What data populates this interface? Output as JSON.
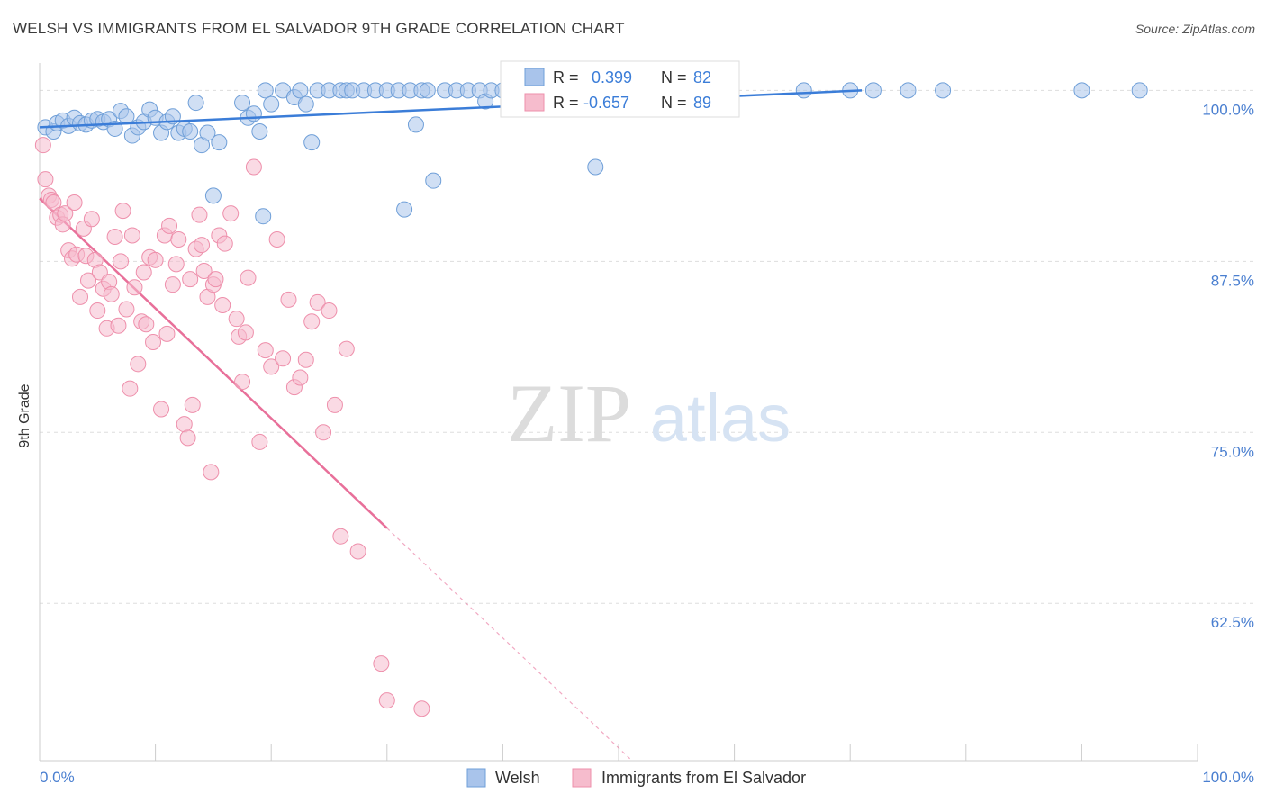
{
  "header": {
    "title": "WELSH VS IMMIGRANTS FROM EL SALVADOR 9TH GRADE CORRELATION CHART",
    "source": "Source: ZipAtlas.com"
  },
  "watermark": {
    "zip": "ZIP",
    "atlas": "atlas"
  },
  "legend_box": {
    "rows": [
      {
        "r_label": "R =",
        "r_value": "0.399",
        "n_label": "N =",
        "n_value": "82"
      },
      {
        "r_label": "R =",
        "r_value": "-0.657",
        "n_label": "N =",
        "n_value": "89"
      }
    ]
  },
  "chart_data": {
    "type": "scatter",
    "title": "WELSH VS IMMIGRANTS FROM EL SALVADOR 9TH GRADE CORRELATION CHART",
    "xlabel": "",
    "ylabel": "9th Grade",
    "xlim": [
      0,
      100
    ],
    "ylim": [
      51,
      102
    ],
    "x_tick_labels": [
      "0.0%",
      "100.0%"
    ],
    "y_ticks": [
      62.5,
      75.0,
      87.5,
      100.0
    ],
    "y_tick_labels": [
      "62.5%",
      "75.0%",
      "87.5%",
      "100.0%"
    ],
    "grid": "horizontal dashed",
    "legend_position": "bottom-center",
    "colors": {
      "welsh_fill": "#a9c4eb",
      "welsh_stroke": "#6f9fd8",
      "welsh_line": "#3b7dd8",
      "salvador_fill": "#f6bccd",
      "salvador_stroke": "#ee8fab",
      "salvador_line": "#e8709a",
      "tick_label": "#4a7fd0",
      "grid": "#dddddd"
    },
    "series": [
      {
        "name": "Welsh",
        "r": 0.399,
        "n": 82,
        "trend": {
          "x": [
            0,
            71
          ],
          "y": [
            97.3,
            100.0
          ]
        },
        "points": [
          [
            0.5,
            97.3
          ],
          [
            1.2,
            97.0
          ],
          [
            1.5,
            97.6
          ],
          [
            2,
            97.8
          ],
          [
            2.5,
            97.4
          ],
          [
            3,
            98.0
          ],
          [
            3.5,
            97.6
          ],
          [
            4,
            97.5
          ],
          [
            4.5,
            97.8
          ],
          [
            5,
            97.9
          ],
          [
            5.5,
            97.7
          ],
          [
            6,
            97.9
          ],
          [
            6.5,
            97.2
          ],
          [
            7,
            98.5
          ],
          [
            7.5,
            98.1
          ],
          [
            8,
            96.7
          ],
          [
            8.5,
            97.3
          ],
          [
            9,
            97.7
          ],
          [
            9.5,
            98.6
          ],
          [
            10,
            98.0
          ],
          [
            10.5,
            96.9
          ],
          [
            11,
            97.7
          ],
          [
            11.5,
            98.1
          ],
          [
            12,
            96.9
          ],
          [
            12.5,
            97.2
          ],
          [
            13,
            97.0
          ],
          [
            13.5,
            99.1
          ],
          [
            14,
            96.0
          ],
          [
            14.5,
            96.9
          ],
          [
            15,
            92.3
          ],
          [
            15.5,
            96.2
          ],
          [
            17.5,
            99.1
          ],
          [
            18,
            98.0
          ],
          [
            18.5,
            98.3
          ],
          [
            19,
            97.0
          ],
          [
            19.3,
            90.8
          ],
          [
            19.5,
            100
          ],
          [
            20,
            99.0
          ],
          [
            21,
            100
          ],
          [
            22,
            99.5
          ],
          [
            22.5,
            100
          ],
          [
            23,
            99.0
          ],
          [
            23.5,
            96.2
          ],
          [
            24,
            100
          ],
          [
            25,
            100
          ],
          [
            26,
            100
          ],
          [
            26.5,
            100
          ],
          [
            27,
            100
          ],
          [
            28,
            100
          ],
          [
            29,
            100
          ],
          [
            30,
            100
          ],
          [
            31,
            100
          ],
          [
            31.5,
            91.3
          ],
          [
            32,
            100
          ],
          [
            32.5,
            97.5
          ],
          [
            33,
            100
          ],
          [
            33.5,
            100
          ],
          [
            34,
            93.4
          ],
          [
            35,
            100
          ],
          [
            36,
            100
          ],
          [
            37,
            100
          ],
          [
            38,
            100
          ],
          [
            38.5,
            99.2
          ],
          [
            39,
            100
          ],
          [
            40,
            100
          ],
          [
            41,
            100
          ],
          [
            42,
            100
          ],
          [
            43,
            100
          ],
          [
            44,
            100
          ],
          [
            45,
            100
          ],
          [
            46,
            100
          ],
          [
            47,
            100
          ],
          [
            48,
            94.4
          ],
          [
            50,
            100
          ],
          [
            55,
            100
          ],
          [
            66,
            100
          ],
          [
            70,
            100
          ],
          [
            72,
            100
          ],
          [
            75,
            100
          ],
          [
            78,
            100
          ],
          [
            90,
            100
          ],
          [
            95,
            100
          ]
        ]
      },
      {
        "name": "Immigrants from El Salvador",
        "r": -0.657,
        "n": 89,
        "trend": {
          "x": [
            0,
            30
          ],
          "y": [
            92.1,
            68.0
          ]
        },
        "points": [
          [
            0.3,
            96.0
          ],
          [
            0.5,
            93.5
          ],
          [
            0.8,
            92.3
          ],
          [
            1,
            92.0
          ],
          [
            1.2,
            91.8
          ],
          [
            1.5,
            90.7
          ],
          [
            1.8,
            90.9
          ],
          [
            2,
            90.2
          ],
          [
            2.2,
            91.0
          ],
          [
            2.5,
            88.3
          ],
          [
            2.8,
            87.7
          ],
          [
            3,
            91.8
          ],
          [
            3.2,
            88.0
          ],
          [
            3.5,
            84.9
          ],
          [
            3.8,
            89.9
          ],
          [
            4,
            87.9
          ],
          [
            4.2,
            86.1
          ],
          [
            4.5,
            90.6
          ],
          [
            4.8,
            87.6
          ],
          [
            5,
            83.9
          ],
          [
            5.2,
            86.7
          ],
          [
            5.5,
            85.5
          ],
          [
            5.8,
            82.6
          ],
          [
            6,
            86.0
          ],
          [
            6.2,
            85.1
          ],
          [
            6.5,
            89.3
          ],
          [
            6.8,
            82.8
          ],
          [
            7,
            87.5
          ],
          [
            7.2,
            91.2
          ],
          [
            7.5,
            84.0
          ],
          [
            7.8,
            78.2
          ],
          [
            8,
            89.4
          ],
          [
            8.2,
            85.6
          ],
          [
            8.5,
            80.0
          ],
          [
            8.8,
            83.1
          ],
          [
            9,
            86.7
          ],
          [
            9.2,
            82.9
          ],
          [
            9.5,
            87.8
          ],
          [
            9.8,
            81.6
          ],
          [
            10,
            87.6
          ],
          [
            10.5,
            76.7
          ],
          [
            10.8,
            89.4
          ],
          [
            11,
            82.2
          ],
          [
            11.2,
            90.1
          ],
          [
            11.5,
            85.8
          ],
          [
            11.8,
            87.3
          ],
          [
            12,
            89.1
          ],
          [
            12.5,
            75.6
          ],
          [
            12.8,
            74.6
          ],
          [
            13,
            86.2
          ],
          [
            13.2,
            77.0
          ],
          [
            13.5,
            88.4
          ],
          [
            13.8,
            90.9
          ],
          [
            14,
            88.7
          ],
          [
            14.2,
            86.8
          ],
          [
            14.5,
            84.9
          ],
          [
            14.8,
            72.1
          ],
          [
            15,
            85.8
          ],
          [
            15.2,
            86.2
          ],
          [
            15.5,
            89.4
          ],
          [
            15.8,
            84.3
          ],
          [
            16,
            88.8
          ],
          [
            16.5,
            91.0
          ],
          [
            17,
            83.3
          ],
          [
            17.2,
            82.0
          ],
          [
            17.5,
            78.7
          ],
          [
            17.8,
            82.3
          ],
          [
            18,
            86.3
          ],
          [
            18.5,
            94.4
          ],
          [
            19,
            74.3
          ],
          [
            19.5,
            81.0
          ],
          [
            20,
            79.8
          ],
          [
            20.5,
            89.1
          ],
          [
            21,
            80.4
          ],
          [
            21.5,
            84.7
          ],
          [
            22,
            78.3
          ],
          [
            22.5,
            79.0
          ],
          [
            23,
            80.3
          ],
          [
            23.5,
            83.1
          ],
          [
            24,
            84.5
          ],
          [
            24.5,
            75.0
          ],
          [
            25,
            83.9
          ],
          [
            25.5,
            77.0
          ],
          [
            26,
            67.4
          ],
          [
            26.5,
            81.1
          ],
          [
            27.5,
            66.3
          ],
          [
            29.5,
            58.1
          ],
          [
            30,
            55.4
          ],
          [
            33,
            54.8
          ]
        ]
      }
    ]
  }
}
